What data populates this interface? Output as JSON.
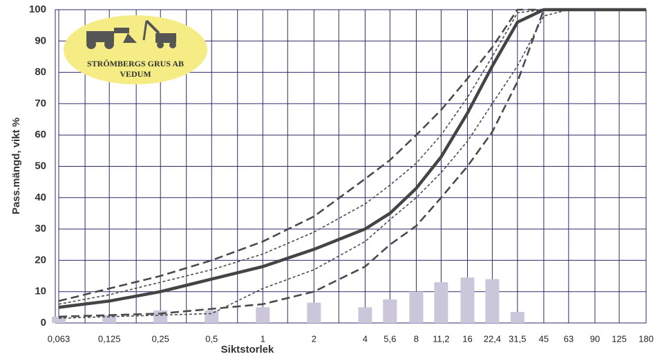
{
  "chart_data": {
    "type": "line",
    "xscale": "log",
    "grid": true,
    "xlabel": "Siktstorlek",
    "ylabel": "Pass.mängd, vikt %",
    "logo": {
      "line1": "STRÖMBERGS GRUS AB",
      "line2": "VEDUM"
    },
    "x": [
      0.063,
      0.125,
      0.25,
      0.5,
      1,
      2,
      4,
      5.6,
      8,
      11.2,
      16,
      22.4,
      31.5,
      45,
      63,
      90,
      125,
      180
    ],
    "xlim": [
      0.063,
      180
    ],
    "xticks": [
      {
        "value": 0.063,
        "label": "0,063"
      },
      {
        "value": 0.125,
        "label": "0,125"
      },
      {
        "value": 0.25,
        "label": "0,25"
      },
      {
        "value": 0.5,
        "label": "0,5"
      },
      1,
      2,
      4,
      {
        "value": 5.6,
        "label": "5,6"
      },
      8,
      {
        "value": 11.2,
        "label": "11,2"
      },
      16,
      {
        "value": 22.4,
        "label": "22,4"
      },
      {
        "value": 31.5,
        "label": "31,5"
      },
      45,
      63,
      90,
      125,
      180
    ],
    "minor_xticks": [
      0.09,
      0.18,
      0.355,
      0.71,
      1.4,
      2.8
    ],
    "ylim": [
      0,
      100
    ],
    "yticks": [
      0,
      10,
      20,
      30,
      40,
      50,
      60,
      70,
      80,
      90,
      100
    ],
    "series": [
      {
        "type": "bar",
        "color": "#cbc6da",
        "values": [
          2,
          2.5,
          4,
          4,
          5,
          6.5,
          5,
          7.5,
          10,
          13,
          14.5,
          14,
          3.5,
          null,
          null,
          null,
          null,
          null
        ]
      },
      {
        "dash": "long",
        "color": "#4a4a4a",
        "values": [
          7,
          11,
          15,
          20,
          26,
          34,
          46,
          52,
          60,
          68,
          78,
          88,
          100,
          100,
          100,
          100,
          100,
          100
        ]
      },
      {
        "dash": "long",
        "color": "#4a4a4a",
        "values": [
          2,
          2.5,
          3,
          4.5,
          6,
          10,
          18,
          25,
          31,
          40,
          50,
          61,
          77,
          100,
          100,
          100,
          100,
          100
        ]
      },
      {
        "dash": "short",
        "color": "#4a4a4a",
        "values": [
          6,
          9,
          13,
          17,
          22,
          29,
          38,
          44,
          51,
          60,
          72,
          85,
          99,
          100,
          100,
          100,
          100,
          100
        ]
      },
      {
        "dash": "short",
        "color": "#4a4a4a",
        "values": [
          1.5,
          2,
          2.5,
          3,
          11,
          17,
          26,
          33,
          40,
          48,
          58,
          70,
          82,
          98,
          100,
          100,
          100,
          100
        ]
      },
      {
        "dash": "solid",
        "color": "#444444",
        "values": [
          5,
          7,
          10,
          14,
          18,
          23.5,
          30,
          35,
          43,
          53,
          67,
          82,
          96,
          100,
          100,
          100,
          100,
          100
        ]
      }
    ]
  }
}
